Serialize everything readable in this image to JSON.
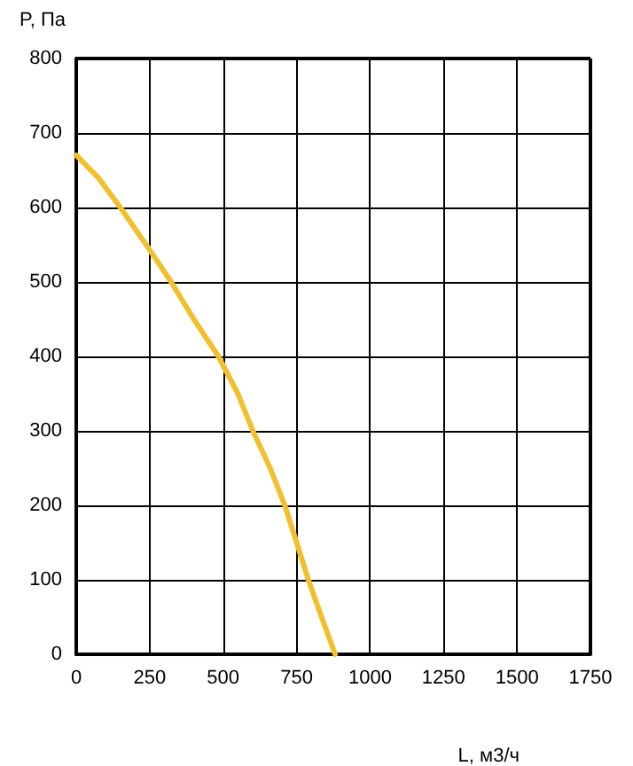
{
  "chart_data": {
    "type": "line",
    "xlabel": "L, м3/ч",
    "ylabel": "P, Па",
    "x": [
      0,
      75,
      150,
      250,
      323,
      400,
      484,
      550,
      601,
      660,
      710,
      750,
      790,
      835,
      881
    ],
    "series": [
      {
        "color": "#f0c030",
        "values": [
          670,
          640,
          600,
          543,
          500,
          450,
          400,
          350,
          300,
          250,
          200,
          150,
          100,
          50,
          0
        ]
      }
    ],
    "xlim": [
      0,
      1750
    ],
    "xticks": [
      0,
      250,
      500,
      750,
      1000,
      1250,
      1500,
      1750
    ],
    "ylim": [
      0,
      800
    ],
    "yticks": [
      0,
      100,
      200,
      300,
      400,
      500,
      600,
      700,
      800
    ],
    "grid": true,
    "marker": "none",
    "line_style": "solid"
  }
}
